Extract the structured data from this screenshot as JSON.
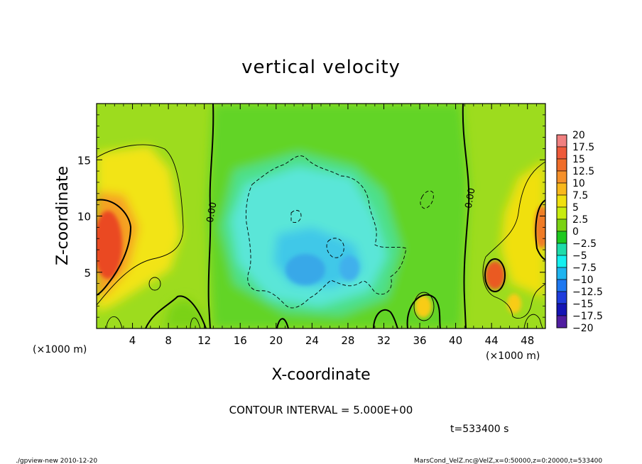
{
  "chart_data": {
    "type": "heatmap",
    "title": "vertical velocity",
    "xlabel": "X-coordinate",
    "ylabel": "Z-coordinate",
    "x_unit_label": "(×1000 m)",
    "x_unit_label_right": "(×1000 m)",
    "xlim": [
      0,
      50
    ],
    "ylim": [
      0,
      20
    ],
    "x_ticks": [
      4,
      8,
      12,
      16,
      20,
      24,
      28,
      32,
      36,
      40,
      44,
      48
    ],
    "y_ticks": [
      5,
      10,
      15
    ],
    "contour_interval_text": "CONTOUR INTERVAL = 5.000E+00",
    "time_text": "t=533400 s",
    "zero_labels": [
      "0.00",
      "0.00"
    ],
    "colorbar": {
      "levels": [
        "20",
        "17.5",
        "15",
        "12.5",
        "10",
        "7.5",
        "5",
        "2.5",
        "0",
        "−2.5",
        "−5",
        "−7.5",
        "−10",
        "−12.5",
        "−15",
        "−17.5",
        "−20"
      ],
      "colors": [
        "#f08080",
        "#ee5a3a",
        "#ef6d2a",
        "#f5902a",
        "#f8b81c",
        "#f0e010",
        "#c8ec10",
        "#7ad214",
        "#1ec81e",
        "#1edcaa",
        "#14f0f0",
        "#1eb4f0",
        "#1e78f0",
        "#1e3cdc",
        "#1414b4",
        "#501ea0"
      ]
    },
    "features": [
      {
        "kind": "updraft",
        "x": 1.5,
        "z": 8,
        "peak": 17.5
      },
      {
        "kind": "updraft",
        "x": 44.2,
        "z": 5.5,
        "peak": 12.5
      },
      {
        "kind": "updraft",
        "x": 49.5,
        "z": 9.5,
        "peak": 12.5
      },
      {
        "kind": "updraft",
        "x": 36,
        "z": 2,
        "peak": 7.5
      },
      {
        "kind": "downdraft",
        "x": 25,
        "z": 7,
        "peak": -7.5
      }
    ]
  },
  "footer": {
    "left": "./gpview-new  2010-12-20",
    "right": "MarsCond_VelZ.nc@VelZ,x=0:50000,z=0:20000,t=533400"
  }
}
